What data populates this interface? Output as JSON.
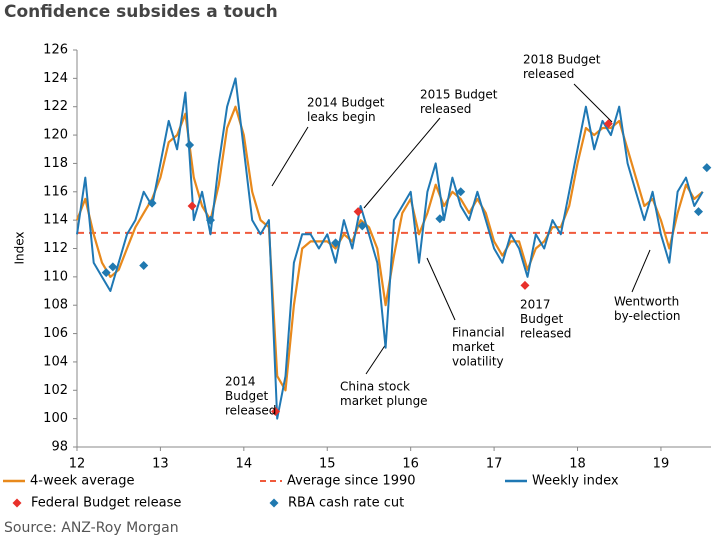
{
  "chart_data": {
    "type": "line",
    "title": "Confidence subsides a touch",
    "y_label": "Index",
    "source": "Source: ANZ-Roy Morgan",
    "xlim": [
      11.9,
      19.6
    ],
    "ylim": [
      98,
      126
    ],
    "xticks": [
      12,
      13,
      14,
      15,
      16,
      17,
      18,
      19
    ],
    "yticks": [
      98,
      100,
      102,
      104,
      106,
      108,
      110,
      112,
      114,
      116,
      118,
      120,
      122,
      124,
      126
    ],
    "x": [
      12.0,
      12.1,
      12.2,
      12.3,
      12.4,
      12.5,
      12.6,
      12.7,
      12.8,
      12.9,
      13.0,
      13.1,
      13.2,
      13.3,
      13.4,
      13.5,
      13.6,
      13.7,
      13.8,
      13.9,
      14.0,
      14.1,
      14.2,
      14.3,
      14.4,
      14.5,
      14.6,
      14.7,
      14.8,
      14.9,
      15.0,
      15.1,
      15.2,
      15.3,
      15.4,
      15.5,
      15.6,
      15.7,
      15.8,
      15.9,
      16.0,
      16.1,
      16.2,
      16.3,
      16.4,
      16.5,
      16.6,
      16.7,
      16.8,
      16.9,
      17.0,
      17.1,
      17.2,
      17.3,
      17.4,
      17.5,
      17.6,
      17.7,
      17.8,
      17.9,
      18.0,
      18.1,
      18.2,
      18.3,
      18.4,
      18.5,
      18.6,
      18.7,
      18.8,
      18.9,
      19.0,
      19.1,
      19.2,
      19.3,
      19.4,
      19.5
    ],
    "series": [
      {
        "name": "4-week average",
        "color": "#e8891c",
        "values": [
          114,
          115.5,
          113,
          111,
          110,
          110.5,
          112,
          113.5,
          114.5,
          115.5,
          117,
          119.5,
          120,
          121.5,
          117,
          115,
          114,
          116.5,
          120.5,
          122,
          120,
          116,
          114,
          113.5,
          103,
          102,
          108,
          112,
          112.5,
          112.5,
          112.5,
          112,
          113,
          112.5,
          114,
          113.5,
          112,
          108,
          111.5,
          114.5,
          115.5,
          113,
          114.5,
          116.5,
          115,
          116,
          115.5,
          114.5,
          115.5,
          114.5,
          112.5,
          111.5,
          112.5,
          112.5,
          110.5,
          112,
          112.5,
          113.5,
          113.5,
          115,
          118,
          120.5,
          120,
          120.5,
          120.5,
          121,
          119,
          117,
          115,
          115.5,
          114,
          112,
          114.5,
          116.5,
          115.5,
          116
        ]
      },
      {
        "name": "Weekly index",
        "color": "#1f78b4",
        "values": [
          113,
          117,
          111,
          110,
          109,
          111,
          113,
          114,
          116,
          115,
          118,
          121,
          119,
          123,
          114,
          116,
          113,
          118,
          122,
          124,
          119,
          114,
          113,
          114,
          100,
          103,
          111,
          113,
          113,
          112,
          113,
          111,
          114,
          112,
          115,
          113,
          111,
          105,
          114,
          115,
          116,
          111,
          116,
          118,
          114,
          117,
          115,
          114,
          116,
          114,
          112,
          111,
          113,
          112,
          110,
          113,
          112,
          114,
          113,
          116,
          119,
          122,
          119,
          121,
          120,
          122,
          118,
          116,
          114,
          116,
          113,
          111,
          116,
          117,
          115,
          116
        ]
      }
    ],
    "reference_lines": [
      {
        "name": "Average since 1990",
        "value": 113.1,
        "color": "#f05a3c"
      }
    ],
    "markers": [
      {
        "name": "Federal Budget release",
        "color": "#e8302a",
        "x": [
          13.38,
          14.38,
          15.37,
          17.37,
          18.37
        ],
        "values": [
          115,
          100.5,
          114.6,
          109.4,
          120.8
        ]
      },
      {
        "name": "RBA cash rate cut",
        "color": "#2079b0",
        "x": [
          12.35,
          12.43,
          12.8,
          12.9,
          13.35,
          13.6,
          15.1,
          15.42,
          16.35,
          16.6,
          19.45,
          19.55
        ],
        "values": [
          110.3,
          110.7,
          110.8,
          115.2,
          119.3,
          114,
          112.4,
          113.6,
          114.1,
          116,
          114.6,
          117.7
        ]
      }
    ],
    "annotations": [
      [
        "2014 Budget",
        "leaks begin"
      ],
      [
        "2015 Budget",
        "released"
      ],
      [
        "2018 Budget",
        "released"
      ],
      [
        "2014",
        "Budget",
        "released"
      ],
      [
        "China stock",
        "market plunge"
      ],
      [
        "Financial",
        "market",
        "volatility"
      ],
      [
        "2017",
        "Budget",
        "released"
      ],
      [
        "Wentworth",
        "by-election"
      ]
    ]
  }
}
